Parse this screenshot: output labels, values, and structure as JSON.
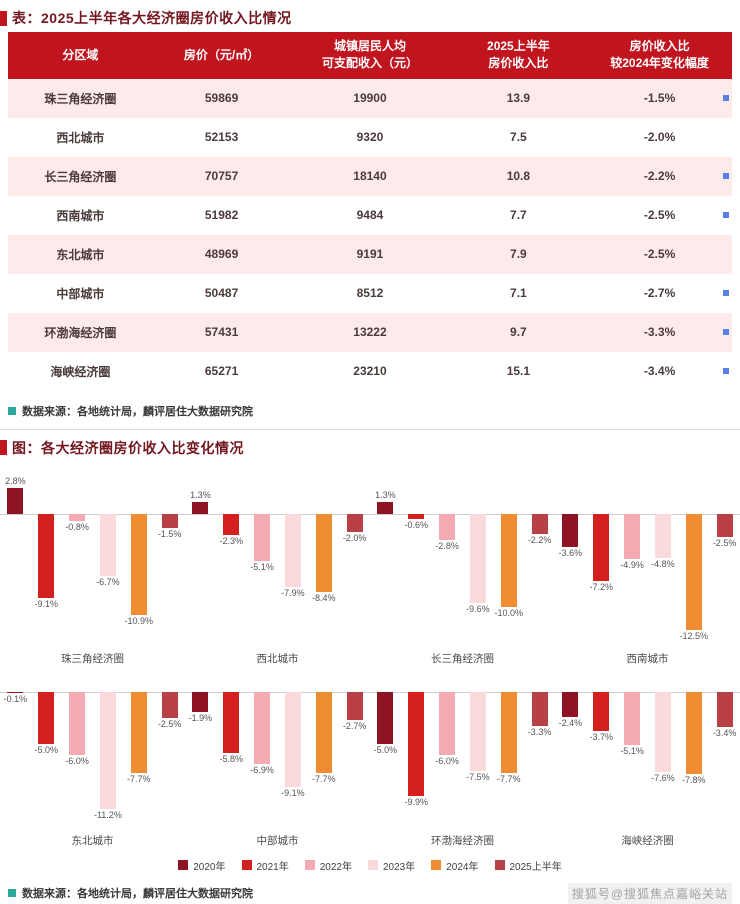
{
  "table_section": {
    "title": "表：2025上半年各大经济圈房价收入比情况",
    "source": "数据来源：各地统计局，麟评居住大数据研究院",
    "table": {
      "headers": [
        [
          "分区域"
        ],
        [
          "房价（元/㎡）"
        ],
        [
          "城镇居民人均",
          "可支配收入（元）"
        ],
        [
          "2025上半年",
          "房价收入比"
        ],
        [
          "房价收入比",
          "较2024年变化幅度"
        ]
      ],
      "rows": [
        {
          "region": "珠三角经济圈",
          "price": "59869",
          "income": "19900",
          "ratio": "13.9",
          "change": "-1.5%",
          "marker": true
        },
        {
          "region": "西北城市",
          "price": "52153",
          "income": "9320",
          "ratio": "7.5",
          "change": "-2.0%",
          "marker": false
        },
        {
          "region": "长三角经济圈",
          "price": "70757",
          "income": "18140",
          "ratio": "10.8",
          "change": "-2.2%",
          "marker": true
        },
        {
          "region": "西南城市",
          "price": "51982",
          "income": "9484",
          "ratio": "7.7",
          "change": "-2.5%",
          "marker": true
        },
        {
          "region": "东北城市",
          "price": "48969",
          "income": "9191",
          "ratio": "7.9",
          "change": "-2.5%",
          "marker": false
        },
        {
          "region": "中部城市",
          "price": "50487",
          "income": "8512",
          "ratio": "7.1",
          "change": "-2.7%",
          "marker": true
        },
        {
          "region": "环渤海经济圈",
          "price": "57431",
          "income": "13222",
          "ratio": "9.7",
          "change": "-3.3%",
          "marker": true
        },
        {
          "region": "海峡经济圈",
          "price": "65271",
          "income": "23210",
          "ratio": "15.1",
          "change": "-3.4%",
          "marker": true
        }
      ]
    }
  },
  "chart_section": {
    "title": "图：各大经济圈房价收入比变化情况",
    "source": "数据来源：各地统计局，麟评居住大数据研究院"
  },
  "watermark": "搜狐号@搜狐焦点嘉峪关站",
  "colors": {
    "table_header_bg": "#c0151f",
    "table_stripe_bg": "#fdeaea",
    "title_text": "#731720",
    "source_bullet": "#2ba79b",
    "edge_marker": "#5b7fe8",
    "axis_line": "#cfcfcf"
  },
  "chart_data": {
    "type": "bar",
    "title": "各大经济圈房价收入比变化情况",
    "unit": "%",
    "legend_position": "bottom",
    "grid": false,
    "rows_layout": [
      4,
      4
    ],
    "series_labels": [
      "2020年",
      "2021年",
      "2022年",
      "2023年",
      "2024年",
      "2025上半年"
    ],
    "series_colors": [
      "#8e1423",
      "#d2201f",
      "#f3aab3",
      "#fbdade",
      "#ee8d31",
      "#b84046"
    ],
    "charts": [
      {
        "name": "珠三角经济圈",
        "values": [
          2.8,
          -9.1,
          -0.8,
          -6.7,
          -10.9,
          -1.5
        ]
      },
      {
        "name": "西北城市",
        "values": [
          1.3,
          -2.3,
          -5.1,
          -7.9,
          -8.4,
          -2.0
        ]
      },
      {
        "name": "长三角经济圈",
        "values": [
          1.3,
          -0.6,
          -2.8,
          -9.6,
          -10.0,
          -2.2
        ]
      },
      {
        "name": "西南城市",
        "values": [
          -3.6,
          -7.2,
          -4.9,
          -4.8,
          -12.5,
          -2.5
        ]
      },
      {
        "name": "东北城市",
        "values": [
          -0.1,
          -5.0,
          -6.0,
          -11.2,
          -7.7,
          -2.5
        ]
      },
      {
        "name": "中部城市",
        "values": [
          -1.9,
          -5.8,
          -6.9,
          -9.1,
          -7.7,
          -2.7
        ]
      },
      {
        "name": "环渤海经济圈",
        "values": [
          -5.0,
          -9.9,
          -6.0,
          -7.5,
          -7.7,
          -3.3
        ]
      },
      {
        "name": "海峡经济圈",
        "values": [
          -2.4,
          -3.7,
          -5.1,
          -7.6,
          -7.8,
          -3.4
        ]
      }
    ]
  }
}
